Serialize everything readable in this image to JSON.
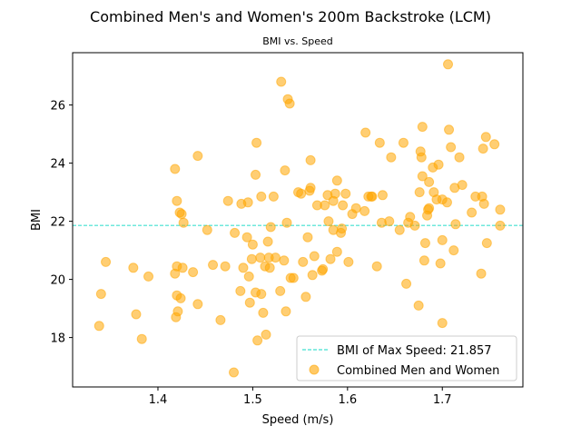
{
  "chart_data": {
    "type": "scatter",
    "title": "Combined Men's and Women's 200m Backstroke (LCM)",
    "subtitle": "BMI vs. Speed",
    "xlabel": "Speed (m/s)",
    "ylabel": "BMI",
    "xlim": [
      1.31,
      1.785
    ],
    "ylim": [
      16.3,
      27.8
    ],
    "xticks": [
      1.4,
      1.5,
      1.6,
      1.7
    ],
    "yticks": [
      18,
      20,
      22,
      24,
      26
    ],
    "xtick_labels": [
      "1.4",
      "1.5",
      "1.6",
      "1.7"
    ],
    "ytick_labels": [
      "18",
      "20",
      "22",
      "24",
      "26"
    ],
    "grid": false,
    "legend_position": "lower-right",
    "reference_line": {
      "label": "BMI of Max Speed: 21.857",
      "y": 21.857,
      "color": "#40e0d0"
    },
    "series": [
      {
        "name": "Combined Men and Women",
        "color": "#ffa500",
        "points": [
          [
            1.338,
            18.4
          ],
          [
            1.34,
            19.5
          ],
          [
            1.345,
            20.6
          ],
          [
            1.374,
            20.4
          ],
          [
            1.377,
            18.8
          ],
          [
            1.383,
            17.95
          ],
          [
            1.39,
            20.1
          ],
          [
            1.418,
            23.8
          ],
          [
            1.418,
            20.2
          ],
          [
            1.419,
            18.7
          ],
          [
            1.42,
            19.45
          ],
          [
            1.42,
            20.45
          ],
          [
            1.42,
            22.7
          ],
          [
            1.421,
            18.9
          ],
          [
            1.423,
            22.3
          ],
          [
            1.424,
            19.35
          ],
          [
            1.425,
            22.25
          ],
          [
            1.426,
            20.4
          ],
          [
            1.427,
            21.95
          ],
          [
            1.437,
            20.25
          ],
          [
            1.442,
            24.25
          ],
          [
            1.442,
            19.15
          ],
          [
            1.452,
            21.7
          ],
          [
            1.458,
            20.5
          ],
          [
            1.466,
            18.6
          ],
          [
            1.471,
            20.45
          ],
          [
            1.474,
            22.7
          ],
          [
            1.48,
            16.8
          ],
          [
            1.481,
            21.6
          ],
          [
            1.487,
            19.6
          ],
          [
            1.488,
            22.6
          ],
          [
            1.49,
            20.4
          ],
          [
            1.494,
            21.45
          ],
          [
            1.495,
            22.65
          ],
          [
            1.496,
            20.1
          ],
          [
            1.497,
            19.2
          ],
          [
            1.499,
            20.7
          ],
          [
            1.5,
            21.2
          ],
          [
            1.503,
            19.55
          ],
          [
            1.503,
            23.6
          ],
          [
            1.504,
            24.7
          ],
          [
            1.505,
            17.9
          ],
          [
            1.508,
            20.75
          ],
          [
            1.509,
            19.5
          ],
          [
            1.509,
            22.85
          ],
          [
            1.511,
            18.85
          ],
          [
            1.513,
            20.45
          ],
          [
            1.514,
            18.1
          ],
          [
            1.516,
            21.3
          ],
          [
            1.517,
            20.75
          ],
          [
            1.518,
            20.4
          ],
          [
            1.519,
            21.8
          ],
          [
            1.522,
            22.85
          ],
          [
            1.524,
            20.75
          ],
          [
            1.529,
            19.6
          ],
          [
            1.53,
            26.8
          ],
          [
            1.533,
            20.65
          ],
          [
            1.534,
            23.75
          ],
          [
            1.535,
            18.9
          ],
          [
            1.536,
            21.95
          ],
          [
            1.537,
            26.2
          ],
          [
            1.539,
            26.05
          ],
          [
            1.54,
            20.05
          ],
          [
            1.543,
            20.05
          ],
          [
            1.548,
            23
          ],
          [
            1.551,
            22.95
          ],
          [
            1.553,
            20.6
          ],
          [
            1.556,
            19.4
          ],
          [
            1.558,
            21.45
          ],
          [
            1.56,
            23.05
          ],
          [
            1.561,
            24.1
          ],
          [
            1.561,
            23.15
          ],
          [
            1.563,
            20.15
          ],
          [
            1.565,
            20.8
          ],
          [
            1.568,
            22.55
          ],
          [
            1.573,
            20.3
          ],
          [
            1.574,
            20.35
          ],
          [
            1.576,
            22.55
          ],
          [
            1.579,
            22.9
          ],
          [
            1.58,
            22
          ],
          [
            1.582,
            20.7
          ],
          [
            1.585,
            21.7
          ],
          [
            1.585,
            22.7
          ],
          [
            1.587,
            22.95
          ],
          [
            1.589,
            23.4
          ],
          [
            1.589,
            20.95
          ],
          [
            1.593,
            21.6
          ],
          [
            1.594,
            21.75
          ],
          [
            1.595,
            22.55
          ],
          [
            1.598,
            22.95
          ],
          [
            1.601,
            20.6
          ],
          [
            1.605,
            22.25
          ],
          [
            1.609,
            22.45
          ],
          [
            1.618,
            22.35
          ],
          [
            1.619,
            25.05
          ],
          [
            1.622,
            22.85
          ],
          [
            1.625,
            22.85
          ],
          [
            1.626,
            22.85
          ],
          [
            1.631,
            20.45
          ],
          [
            1.634,
            24.7
          ],
          [
            1.636,
            21.95
          ],
          [
            1.637,
            22.9
          ],
          [
            1.644,
            22
          ],
          [
            1.646,
            24.2
          ],
          [
            1.655,
            21.7
          ],
          [
            1.659,
            24.7
          ],
          [
            1.662,
            19.85
          ],
          [
            1.664,
            21.95
          ],
          [
            1.666,
            22.15
          ],
          [
            1.671,
            21.85
          ],
          [
            1.675,
            19.1
          ],
          [
            1.676,
            23
          ],
          [
            1.677,
            24.4
          ],
          [
            1.678,
            24.2
          ],
          [
            1.679,
            23.55
          ],
          [
            1.679,
            25.25
          ],
          [
            1.681,
            20.65
          ],
          [
            1.682,
            21.25
          ],
          [
            1.684,
            22.2
          ],
          [
            1.685,
            22.4
          ],
          [
            1.686,
            23.35
          ],
          [
            1.686,
            22.45
          ],
          [
            1.69,
            23.85
          ],
          [
            1.691,
            23
          ],
          [
            1.694,
            22.75
          ],
          [
            1.696,
            23.95
          ],
          [
            1.698,
            20.55
          ],
          [
            1.7,
            21.35
          ],
          [
            1.7,
            22.75
          ],
          [
            1.7,
            18.5
          ],
          [
            1.705,
            22.65
          ],
          [
            1.706,
            27.4
          ],
          [
            1.707,
            25.15
          ],
          [
            1.709,
            24.55
          ],
          [
            1.712,
            21
          ],
          [
            1.713,
            23.15
          ],
          [
            1.714,
            21.9
          ],
          [
            1.718,
            24.2
          ],
          [
            1.721,
            23.25
          ],
          [
            1.731,
            22.3
          ],
          [
            1.735,
            22.85
          ],
          [
            1.741,
            20.2
          ],
          [
            1.742,
            22.85
          ],
          [
            1.743,
            24.5
          ],
          [
            1.744,
            22.6
          ],
          [
            1.746,
            24.9
          ],
          [
            1.747,
            21.25
          ],
          [
            1.755,
            24.65
          ],
          [
            1.761,
            22.4
          ],
          [
            1.761,
            21.85
          ]
        ]
      }
    ]
  }
}
